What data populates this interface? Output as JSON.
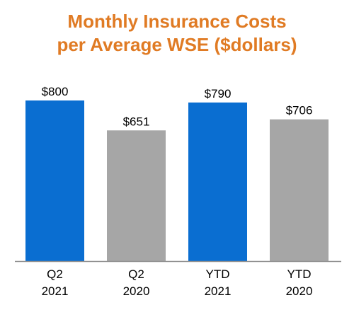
{
  "title_lines": [
    "Monthly Insurance Costs",
    "per Average WSE ($dollars)"
  ],
  "chart_data": {
    "type": "bar",
    "title": "Monthly Insurance Costs per Average WSE ($dollars)",
    "categories": [
      [
        "Q2",
        "2021"
      ],
      [
        "Q2",
        "2020"
      ],
      [
        "YTD",
        "2021"
      ],
      [
        "YTD",
        "2020"
      ]
    ],
    "values": [
      800,
      651,
      790,
      706
    ],
    "data_labels": [
      "$800",
      "$651",
      "$790",
      "$706"
    ],
    "bar_colors": [
      "#0A6ED1",
      "#A6A6A6",
      "#0A6ED1",
      "#A6A6A6"
    ],
    "xlabel": "",
    "ylabel": "",
    "ylim": [
      0,
      1000
    ],
    "grid": false,
    "legend": false
  },
  "colors": {
    "title": "#E07B24",
    "axis": "#8C8C8C",
    "label_text": "#000000"
  }
}
